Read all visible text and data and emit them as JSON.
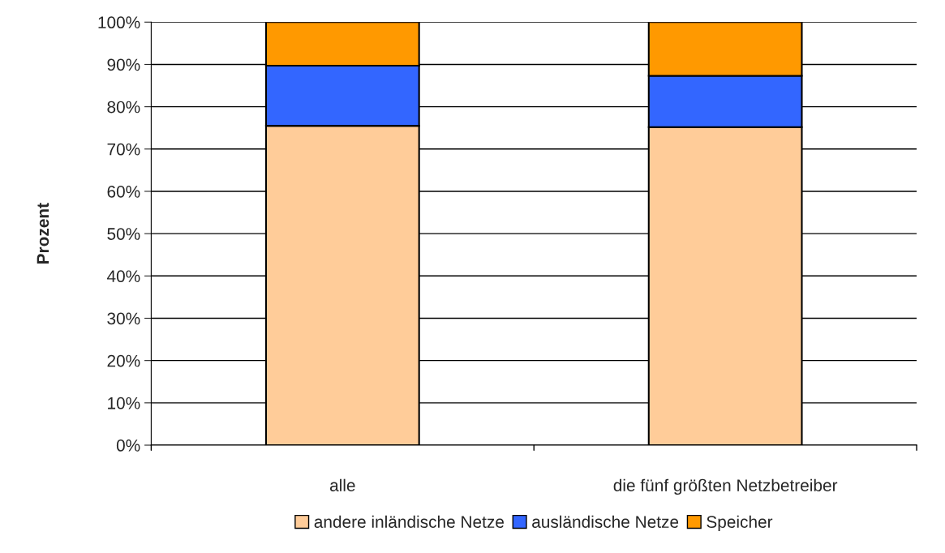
{
  "chart_data": {
    "type": "bar",
    "stacked": true,
    "ylabel": "Prozent",
    "categories": [
      "alle",
      "die fünf größten Netzbetreiber"
    ],
    "series": [
      {
        "name": "andere inländische Netze",
        "color": "#ffcc99",
        "values": [
          75.5,
          75.2
        ]
      },
      {
        "name": "ausländische Netze",
        "color": "#3366ff",
        "values": [
          14.2,
          12.1
        ]
      },
      {
        "name": "Speicher",
        "color": "#ff9900",
        "values": [
          10.3,
          12.7
        ]
      }
    ],
    "ylim": [
      0,
      100
    ],
    "yticks": [
      {
        "value": 0,
        "label": "0%"
      },
      {
        "value": 10,
        "label": "10%"
      },
      {
        "value": 20,
        "label": "20%"
      },
      {
        "value": 30,
        "label": "30%"
      },
      {
        "value": 40,
        "label": "40%"
      },
      {
        "value": 50,
        "label": "50%"
      },
      {
        "value": 60,
        "label": "60%"
      },
      {
        "value": 70,
        "label": "70%"
      },
      {
        "value": 80,
        "label": "80%"
      },
      {
        "value": 90,
        "label": "90%"
      },
      {
        "value": 100,
        "label": "100%"
      }
    ],
    "grid": "y",
    "legend": "bottom"
  }
}
